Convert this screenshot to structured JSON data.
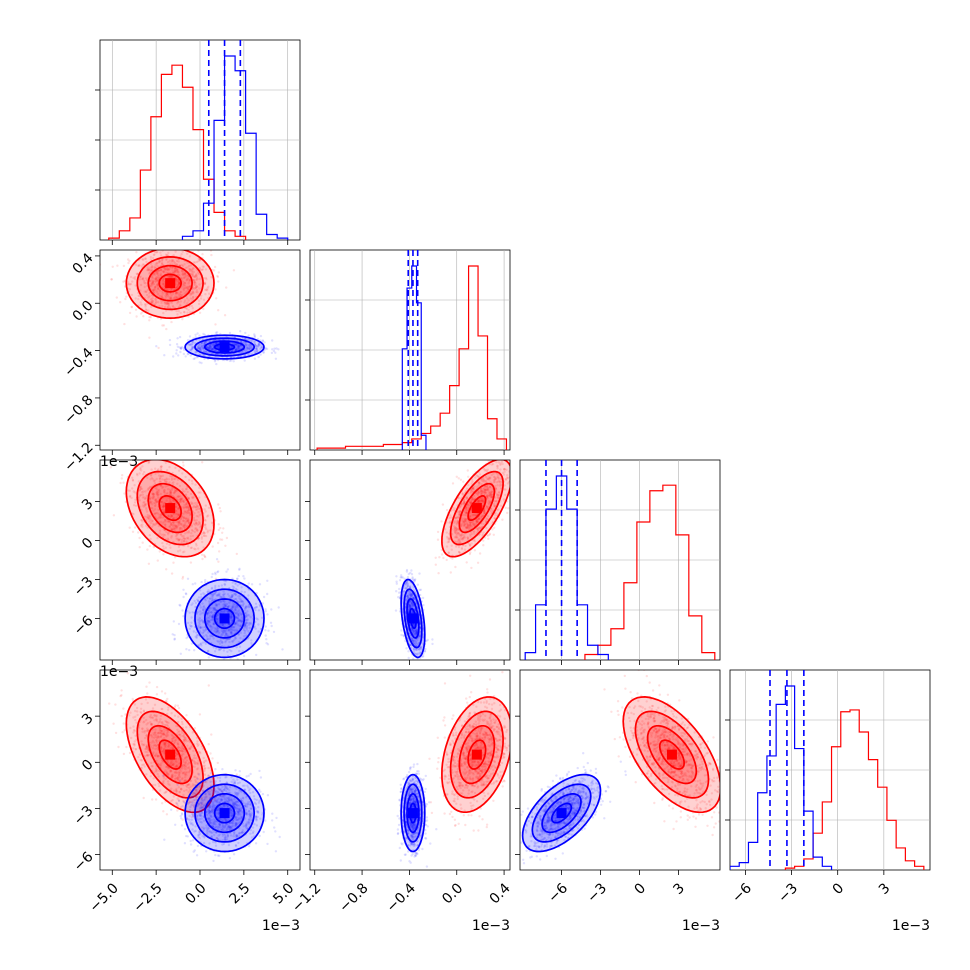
{
  "chart_data": {
    "type": "corner",
    "description_note": "",
    "colors": {
      "series_a": "#ff0000",
      "series_b": "#0000ff",
      "grid": "#b0b0b0"
    },
    "series": [
      {
        "color": "#ff0000",
        "means": [
          -0.0017,
          0.00017,
          0.0025,
          0.0005
        ],
        "sds": [
          0.001,
          0.00012,
          0.0015,
          0.0015
        ]
      },
      {
        "color": "#0000ff",
        "means": [
          0.0014,
          -0.00037,
          -0.006,
          -0.0033
        ],
        "sds": [
          0.0009,
          4e-05,
          0.0012,
          0.001
        ]
      }
    ],
    "axes": [
      {
        "range": [
          -0.0057,
          0.0057
        ],
        "ticks": [
          -0.005,
          -0.0025,
          0.0,
          0.0025,
          0.005
        ],
        "tick_labels": [
          "−5.0",
          "−2.5",
          "0.0",
          "2.5",
          "5.0"
        ],
        "offset": "1e−3"
      },
      {
        "range": [
          -0.00124,
          0.00045
        ],
        "ticks": [
          -0.0012,
          -0.0008,
          -0.0004,
          0.0,
          0.0004
        ],
        "tick_labels": [
          "−1.2",
          "−0.8",
          "−0.4",
          "0.0",
          "0.4"
        ],
        "offset": "1e−3"
      },
      {
        "range": [
          -0.0092,
          0.0062
        ],
        "ticks": [
          -0.006,
          -0.003,
          0.0,
          0.003
        ],
        "tick_labels": [
          "−6",
          "−3",
          "0",
          "3"
        ],
        "offset": "1e−3"
      },
      {
        "range": [
          -0.007,
          0.006
        ],
        "ticks": [
          -0.006,
          -0.003,
          0.0,
          0.003
        ],
        "tick_labels": [
          "−6",
          "−3",
          "0",
          "3"
        ],
        "offset": "1e−3"
      }
    ],
    "histograms": [
      {
        "param": 0,
        "red": {
          "edges": [
            -0.0052,
            -0.0046,
            -0.004,
            -0.0034,
            -0.0028,
            -0.0022,
            -0.0016,
            -0.001,
            -0.0004,
            0.0002,
            0.0008,
            0.0014,
            0.002,
            0.0026
          ],
          "counts": [
            0.01,
            0.05,
            0.12,
            0.38,
            0.67,
            0.9,
            0.95,
            0.83,
            0.6,
            0.33,
            0.15,
            0.05,
            0.02
          ]
        },
        "blue": {
          "edges": [
            -0.001,
            -0.0004,
            0.0002,
            0.0008,
            0.0014,
            0.002,
            0.0026,
            0.0032,
            0.0038,
            0.0044,
            0.005
          ],
          "counts": [
            0.02,
            0.05,
            0.2,
            0.65,
            1.0,
            0.92,
            0.58,
            0.14,
            0.03,
            0.01
          ]
        },
        "quantiles": [
          0.0005,
          0.0014,
          0.0023
        ]
      },
      {
        "param": 1,
        "red": {
          "edges": [
            -0.00118,
            -0.0011,
            -0.00102,
            -0.00094,
            -0.00086,
            -0.00078,
            -0.0007,
            -0.00062,
            -0.00054,
            -0.00046,
            -0.00038,
            -0.0003,
            -0.00022,
            -0.00014,
            -6e-05,
            2e-05,
            0.0001,
            0.00018,
            0.00026,
            0.00034,
            0.00042
          ],
          "counts": [
            0.01,
            0.01,
            0.01,
            0.02,
            0.02,
            0.02,
            0.02,
            0.03,
            0.03,
            0.04,
            0.06,
            0.09,
            0.13,
            0.2,
            0.35,
            0.55,
            1.0,
            0.62,
            0.17,
            0.06
          ]
        },
        "blue": {
          "edges": [
            -0.00046,
            -0.00042,
            -0.00038,
            -0.00034,
            -0.0003,
            -0.00026
          ],
          "counts": [
            0.55,
            0.88,
            1.0,
            0.8,
            0.08
          ]
        },
        "quantiles": [
          -0.00041,
          -0.00037,
          -0.00033
        ]
      },
      {
        "param": 2,
        "red": {
          "edges": [
            -0.0042,
            -0.0032,
            -0.0022,
            -0.0012,
            -0.0002,
            0.0008,
            0.0018,
            0.0028,
            0.0038,
            0.0048,
            0.0058
          ],
          "counts": [
            0.03,
            0.08,
            0.17,
            0.42,
            0.75,
            0.92,
            0.95,
            0.68,
            0.24,
            0.04
          ]
        },
        "blue": {
          "edges": [
            -0.0088,
            -0.008,
            -0.0072,
            -0.0064,
            -0.0056,
            -0.0048,
            -0.004,
            -0.0032,
            -0.0024
          ],
          "counts": [
            0.04,
            0.3,
            0.82,
            1.0,
            0.82,
            0.3,
            0.08,
            0.03
          ]
        },
        "quantiles": [
          -0.0072,
          -0.006,
          -0.0048
        ]
      },
      {
        "param": 3,
        "red": {
          "edges": [
            -0.0034,
            -0.0028,
            -0.0022,
            -0.0016,
            -0.001,
            -0.0004,
            0.0002,
            0.0008,
            0.0014,
            0.002,
            0.0026,
            0.0032,
            0.0038,
            0.0044,
            0.005,
            0.0056
          ],
          "counts": [
            0.01,
            0.02,
            0.06,
            0.2,
            0.37,
            0.67,
            0.86,
            0.87,
            0.75,
            0.6,
            0.45,
            0.27,
            0.12,
            0.05,
            0.02
          ]
        },
        "blue": {
          "edges": [
            -0.007,
            -0.0064,
            -0.0058,
            -0.0052,
            -0.0046,
            -0.004,
            -0.0034,
            -0.0028,
            -0.0022,
            -0.0016,
            -0.001,
            -0.0004
          ],
          "counts": [
            0.02,
            0.04,
            0.15,
            0.42,
            0.62,
            0.9,
            1.0,
            0.66,
            0.32,
            0.07,
            0.02
          ]
        },
        "quantiles": [
          -0.0044,
          -0.0033,
          -0.0022
        ]
      }
    ],
    "scatter_panels": [
      {
        "row": 1,
        "col": 0,
        "red": {
          "mean": [
            -0.0017,
            0.00017
          ],
          "cov": [
            [
              1e-06,
              -3e-11
            ],
            [
              -3e-11,
              1.4e-08
            ]
          ]
        },
        "blue": {
          "mean": [
            0.0014,
            -0.00037
          ],
          "cov": [
            [
              8.1e-07,
              0
            ],
            [
              0,
              1.6e-09
            ]
          ]
        }
      },
      {
        "row": 2,
        "col": 0,
        "red": {
          "mean": [
            -0.0017,
            0.0025
          ],
          "cov": [
            [
              1e-06,
              -5e-07
            ],
            [
              -5e-07,
              2.25e-06
            ]
          ]
        },
        "blue": {
          "mean": [
            0.0014,
            -0.006
          ],
          "cov": [
            [
              8.1e-07,
              0
            ],
            [
              0,
              1.44e-06
            ]
          ]
        }
      },
      {
        "row": 2,
        "col": 1,
        "red": {
          "mean": [
            0.00017,
            0.0025
          ],
          "cov": [
            [
              1.4e-08,
              1.2e-07
            ],
            [
              1.2e-07,
              2.25e-06
            ]
          ]
        },
        "blue": {
          "mean": [
            -0.00037,
            -0.006
          ],
          "cov": [
            [
              1.6e-09,
              -2e-08
            ],
            [
              -2e-08,
              1.44e-06
            ]
          ]
        }
      },
      {
        "row": 3,
        "col": 0,
        "red": {
          "mean": [
            -0.0017,
            0.0005
          ],
          "cov": [
            [
              1e-06,
              -8e-07
            ],
            [
              -8e-07,
              2.25e-06
            ]
          ]
        },
        "blue": {
          "mean": [
            0.0014,
            -0.0033
          ],
          "cov": [
            [
              8.1e-07,
              0
            ],
            [
              0,
              1e-06
            ]
          ]
        }
      },
      {
        "row": 3,
        "col": 1,
        "red": {
          "mean": [
            0.00017,
            0.0005
          ],
          "cov": [
            [
              1.4e-08,
              6e-08
            ],
            [
              6e-08,
              2.25e-06
            ]
          ]
        },
        "blue": {
          "mean": [
            -0.00037,
            -0.0033
          ],
          "cov": [
            [
              1.6e-09,
              0
            ],
            [
              0,
              1e-06
            ]
          ]
        }
      },
      {
        "row": 3,
        "col": 2,
        "red": {
          "mean": [
            0.0025,
            0.0005
          ],
          "cov": [
            [
              2.25e-06,
              -1.3e-06
            ],
            [
              -1.3e-06,
              2.25e-06
            ]
          ]
        },
        "blue": {
          "mean": [
            -0.006,
            -0.0033
          ],
          "cov": [
            [
              1.44e-06,
              7e-07
            ],
            [
              7e-07,
              1e-06
            ]
          ]
        }
      }
    ]
  }
}
